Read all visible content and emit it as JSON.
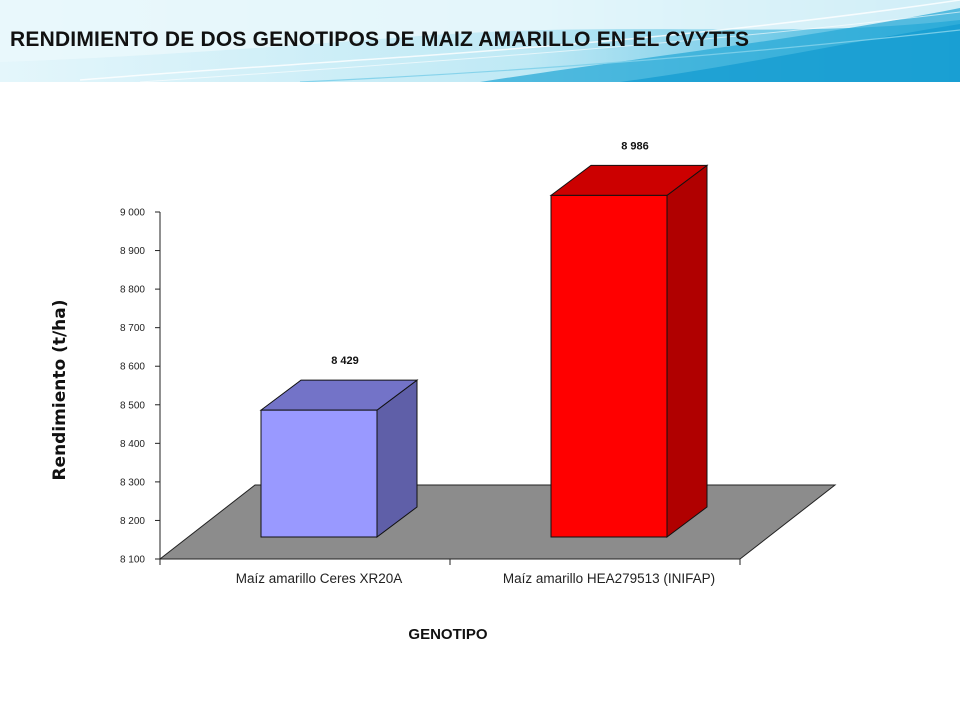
{
  "slide": {
    "title": "RENDIMIENTO  DE  DOS GENOTIPOS DE MAIZ  AMARILLO EN EL CVYTTS"
  },
  "colors": {
    "banner_light": "#dff4fa",
    "banner_mid": "#6cc6e3",
    "banner_dark": "#1a9fce",
    "floor": "#8c8c8c",
    "series": [
      "#9999ff",
      "#ff0000"
    ],
    "series_side": [
      "#5f5fa8",
      "#b00000"
    ],
    "series_top": [
      "#7373c8",
      "#cc0000"
    ]
  },
  "chart_data": {
    "type": "bar",
    "style": "3d-columns",
    "categories": [
      "Maíz amarillo Ceres XR20A",
      "Maíz amarillo HEA279513 (INIFAP)"
    ],
    "values": [
      8429,
      8986
    ],
    "data_labels": [
      "8 429",
      "8 986"
    ],
    "xlabel": "GENOTIPO",
    "ylabel": "Rendimiento (t/ha)",
    "ylim": [
      8100,
      9000
    ],
    "yticks": [
      8100,
      8200,
      8300,
      8400,
      8500,
      8600,
      8700,
      8800,
      8900,
      9000
    ],
    "ytick_labels": [
      "8 100",
      "8 200",
      "8 300",
      "8 400",
      "8 500",
      "8 600",
      "8 700",
      "8 800",
      "8 900",
      "9 000"
    ],
    "grid": false,
    "legend": "none"
  }
}
